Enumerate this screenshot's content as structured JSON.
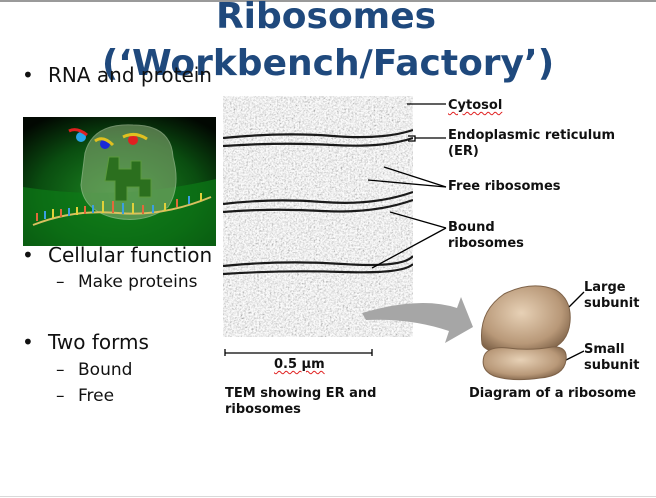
{
  "slide": {
    "title_line1": "Ribosomes",
    "title_line2": "(‘Workbench/Factory’)",
    "bullets": [
      {
        "text": "RNA and protein"
      },
      {
        "text": "Cellular function",
        "subs": [
          "Make proteins"
        ]
      },
      {
        "text": "Two forms",
        "subs": [
          "Bound",
          "Free"
        ]
      }
    ],
    "bullet_symbol": "•",
    "sub_symbol": "–"
  },
  "figure": {
    "labels": {
      "cytosol": "Cytosol",
      "er_line1": "Endoplasmic reticulum",
      "er_line2": "(ER)",
      "free_ribosomes": "Free ribosomes",
      "bound_line1": "Bound",
      "bound_line2": "ribosomes",
      "large_line1": "Large",
      "large_line2": "subunit",
      "small_line1": "Small",
      "small_line2": "subunit"
    },
    "scale_bar": "0.5 µm",
    "caption_tem_line1": "TEM showing ER and",
    "caption_tem_line2": "ribosomes",
    "caption_diagram": "Diagram of a ribosome"
  },
  "colors": {
    "title": "#1f497d",
    "arrow": "#a6a6a6",
    "ribosome": "#b89878",
    "photo_bg": "#0c5a12"
  }
}
